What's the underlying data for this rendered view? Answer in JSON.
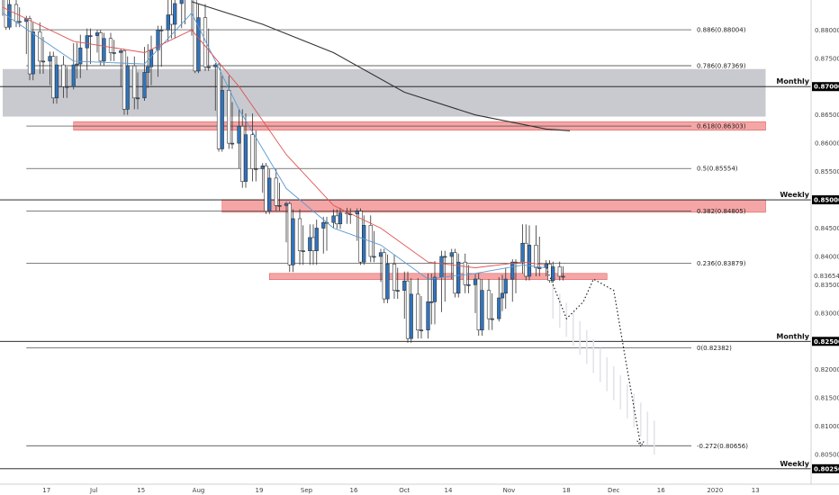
{
  "colors": {
    "background": "#ffffff",
    "bull_candle": "#2e74c0",
    "bear_candle": "#ffffff",
    "wick": "#333333",
    "zone_red": "#f08080",
    "zone_grey": "#b6b8bf",
    "ema_fast": "#5b9bd5",
    "ema_slow": "#e05353",
    "sma_long": "#333333",
    "projection": "#e2e4ea",
    "price_badge": "#000000"
  },
  "chart_data": {
    "type": "candlestick",
    "y_axis_position": "right",
    "ylim": [
      0.8012,
      0.8845
    ],
    "x_dates_first": "2019-06-04",
    "x_dates_last": "2020-01-16",
    "y_ticks": [
      "0.88000",
      "0.87500",
      "0.87000",
      "0.86500",
      "0.86000",
      "0.85500",
      "0.85000",
      "0.84500",
      "0.84000",
      "0.83500",
      "0.83000",
      "0.82500",
      "0.82000",
      "0.81500",
      "0.81000",
      "0.80500",
      "0.80250"
    ],
    "x_ticks": [
      {
        "label": "17",
        "date": "2019-06-17"
      },
      {
        "label": "Jul",
        "date": "2019-07-01"
      },
      {
        "label": "15",
        "date": "2019-07-15"
      },
      {
        "label": "Aug",
        "date": "2019-08-01"
      },
      {
        "label": "19",
        "date": "2019-08-19"
      },
      {
        "label": "Sep",
        "date": "2019-09-02"
      },
      {
        "label": "16",
        "date": "2019-09-16"
      },
      {
        "label": "Oct",
        "date": "2019-10-01"
      },
      {
        "label": "14",
        "date": "2019-10-14"
      },
      {
        "label": "Nov",
        "date": "2019-11-01"
      },
      {
        "label": "18",
        "date": "2019-11-18"
      },
      {
        "label": "Dec",
        "date": "2019-12-02"
      },
      {
        "label": "16",
        "date": "2019-12-16"
      },
      {
        "label": "2020",
        "date": "2020-01-01"
      },
      {
        "label": "13",
        "date": "2020-01-13"
      }
    ],
    "fib_levels": [
      {
        "label": "0.886(0.88004)",
        "value": 0.88004
      },
      {
        "label": "0.786(0.87369)",
        "value": 0.87369
      },
      {
        "label": "0.618(0.86303)",
        "value": 0.86303
      },
      {
        "label": "0.5(0.85554)",
        "value": 0.85554
      },
      {
        "label": "0.382(0.84805)",
        "value": 0.84805
      },
      {
        "label": "0.236(0.83879)",
        "value": 0.83879
      },
      {
        "label": "0(0.82382)",
        "value": 0.82382
      },
      {
        "label": "-0.272(0.80656)",
        "value": -0.272,
        "price": 0.80656
      }
    ],
    "horizontal_levels": [
      {
        "label": "Monthly",
        "value": 0.87
      },
      {
        "label": "Weekly",
        "value": 0.85
      },
      {
        "label": "Monthly",
        "value": 0.825
      },
      {
        "label": "Weekly",
        "value": 0.8025
      }
    ],
    "price_badges": [
      "0.87000",
      "0.85000",
      "0.83654",
      "0.82500",
      "0.80250"
    ],
    "zones": [
      {
        "kind": "grey",
        "from": 0.8647,
        "to": 0.8731,
        "date_from": "2019-06-04",
        "date_to": "2020-01-16"
      },
      {
        "kind": "red",
        "from": 0.8623,
        "to": 0.8638,
        "date_from": "2019-06-25",
        "date_to": "2020-01-16"
      },
      {
        "kind": "red",
        "from": 0.8478,
        "to": 0.85,
        "date_from": "2019-08-08",
        "date_to": "2020-01-16"
      },
      {
        "kind": "red",
        "from": 0.8359,
        "to": 0.837,
        "date_from": "2019-08-22",
        "date_to": "2019-11-30"
      }
    ],
    "ohlc_weekly_approx": [
      {
        "date": "2019-06-04",
        "o": 0.8855,
        "h": 0.8865,
        "l": 0.8795,
        "c": 0.8815
      },
      {
        "date": "2019-06-11",
        "o": 0.8815,
        "h": 0.883,
        "l": 0.87,
        "c": 0.8745
      },
      {
        "date": "2019-06-18",
        "o": 0.8745,
        "h": 0.877,
        "l": 0.866,
        "c": 0.87
      },
      {
        "date": "2019-06-25",
        "o": 0.87,
        "h": 0.8815,
        "l": 0.869,
        "c": 0.879
      },
      {
        "date": "2019-07-02",
        "o": 0.879,
        "h": 0.8805,
        "l": 0.873,
        "c": 0.876
      },
      {
        "date": "2019-07-09",
        "o": 0.876,
        "h": 0.877,
        "l": 0.864,
        "c": 0.868
      },
      {
        "date": "2019-07-16",
        "o": 0.868,
        "h": 0.8815,
        "l": 0.867,
        "c": 0.88
      },
      {
        "date": "2019-07-23",
        "o": 0.88,
        "h": 0.888,
        "l": 0.876,
        "c": 0.886
      },
      {
        "date": "2019-07-30",
        "o": 0.886,
        "h": 0.887,
        "l": 0.872,
        "c": 0.8735
      },
      {
        "date": "2019-08-06",
        "o": 0.8735,
        "h": 0.8745,
        "l": 0.858,
        "c": 0.86
      },
      {
        "date": "2019-08-13",
        "o": 0.86,
        "h": 0.869,
        "l": 0.851,
        "c": 0.8555
      },
      {
        "date": "2019-08-20",
        "o": 0.8555,
        "h": 0.857,
        "l": 0.847,
        "c": 0.849
      },
      {
        "date": "2019-08-27",
        "o": 0.849,
        "h": 0.85,
        "l": 0.836,
        "c": 0.841
      },
      {
        "date": "2019-09-03",
        "o": 0.841,
        "h": 0.848,
        "l": 0.836,
        "c": 0.846
      },
      {
        "date": "2019-09-10",
        "o": 0.846,
        "h": 0.8495,
        "l": 0.844,
        "c": 0.8475
      },
      {
        "date": "2019-09-17",
        "o": 0.8475,
        "h": 0.849,
        "l": 0.838,
        "c": 0.84
      },
      {
        "date": "2019-09-24",
        "o": 0.84,
        "h": 0.842,
        "l": 0.831,
        "c": 0.834
      },
      {
        "date": "2019-10-01",
        "o": 0.834,
        "h": 0.839,
        "l": 0.824,
        "c": 0.827
      },
      {
        "date": "2019-10-08",
        "o": 0.827,
        "h": 0.842,
        "l": 0.824,
        "c": 0.84
      },
      {
        "date": "2019-10-15",
        "o": 0.84,
        "h": 0.842,
        "l": 0.832,
        "c": 0.835
      },
      {
        "date": "2019-10-22",
        "o": 0.835,
        "h": 0.838,
        "l": 0.825,
        "c": 0.829
      },
      {
        "date": "2019-10-29",
        "o": 0.829,
        "h": 0.84,
        "l": 0.828,
        "c": 0.839
      },
      {
        "date": "2019-11-05",
        "o": 0.839,
        "h": 0.849,
        "l": 0.835,
        "c": 0.838
      },
      {
        "date": "2019-11-12",
        "o": 0.838,
        "h": 0.84,
        "l": 0.835,
        "c": 0.8365
      }
    ],
    "moving_averages": [
      {
        "kind": "ema_fast",
        "points": [
          [
            "2019-06-04",
            0.883
          ],
          [
            "2019-06-25",
            0.8745
          ],
          [
            "2019-07-16",
            0.874
          ],
          [
            "2019-07-30",
            0.883
          ],
          [
            "2019-08-13",
            0.866
          ],
          [
            "2019-08-27",
            0.852
          ],
          [
            "2019-09-10",
            0.845
          ],
          [
            "2019-09-24",
            0.842
          ],
          [
            "2019-10-08",
            0.836
          ],
          [
            "2019-10-22",
            0.837
          ],
          [
            "2019-11-05",
            0.8385
          ],
          [
            "2019-11-12",
            0.838
          ]
        ]
      },
      {
        "kind": "ema_slow",
        "points": [
          [
            "2019-06-04",
            0.884
          ],
          [
            "2019-06-25",
            0.878
          ],
          [
            "2019-07-16",
            0.876
          ],
          [
            "2019-07-30",
            0.88
          ],
          [
            "2019-08-13",
            0.87
          ],
          [
            "2019-08-27",
            0.858
          ],
          [
            "2019-09-10",
            0.849
          ],
          [
            "2019-09-24",
            0.845
          ],
          [
            "2019-10-08",
            0.839
          ],
          [
            "2019-10-22",
            0.838
          ],
          [
            "2019-11-05",
            0.839
          ],
          [
            "2019-11-12",
            0.8385
          ]
        ]
      },
      {
        "kind": "sma_long",
        "points": [
          [
            "2019-07-30",
            0.885
          ],
          [
            "2019-08-20",
            0.881
          ],
          [
            "2019-09-10",
            0.876
          ],
          [
            "2019-10-01",
            0.869
          ],
          [
            "2019-10-22",
            0.865
          ],
          [
            "2019-11-12",
            0.8625
          ],
          [
            "2019-11-19",
            0.8622
          ]
        ]
      }
    ],
    "projection_path": [
      [
        "2019-11-12",
        0.838
      ],
      [
        "2019-11-18",
        0.829
      ],
      [
        "2019-11-23",
        0.832
      ],
      [
        "2019-11-26",
        0.836
      ],
      [
        "2019-12-02",
        0.834
      ],
      [
        "2019-12-06",
        0.82
      ],
      [
        "2019-12-10",
        0.8065
      ]
    ]
  }
}
